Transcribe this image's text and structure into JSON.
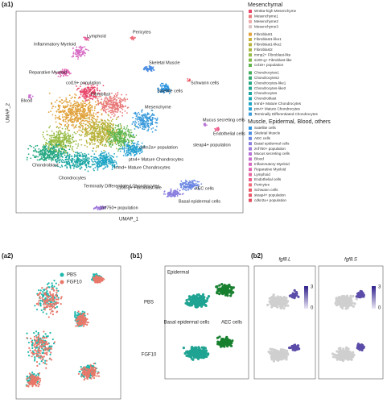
{
  "a1": {
    "panel_label": "(a1)",
    "x_label": "UMAP_1",
    "y_label": "UMAP_2",
    "cluster_labels": [
      "Lymphoid",
      "Pericytes",
      "Inflammatory Myeloid",
      "Reparative Myeloid",
      "Skeletal Muscle",
      "Schwann cells",
      "Blood",
      "Fibroblast",
      "Satellite cells",
      "col19+ population",
      "Mesenchyme",
      "Mucus secreting cells",
      "Endothelial cells",
      "steap4+ population",
      "cdkn2a+ population",
      "ptn4+ Mature Chondrocytes",
      "Inmd+ Mature Chondrocytes",
      "Chondroblast",
      "Chondrocytes",
      "Terminally Differentiated Chondrocytes",
      "s100-g+ Fibroblast-like",
      "AEC cells",
      "Basal epidermal cells",
      "znf750+ population"
    ],
    "legend": [
      {
        "title": "Mesenchymal",
        "items": [
          {
            "name": "Wnt5a-high Mesenchyme",
            "color": "#e8476a"
          },
          {
            "name": "Mesenchyme1",
            "color": "#e97a7a"
          },
          {
            "name": "Mesenchyme2",
            "color": "#eeaaaa"
          },
          {
            "name": "Mesenchyme3",
            "color": "#d9c4c4"
          },
          {
            "name": "Fibroblast1",
            "color": "#e1a23c"
          },
          {
            "name": "Fibroblast1-like1",
            "color": "#c8b43a"
          },
          {
            "name": "Fibroblast1-like2",
            "color": "#b8b23a"
          },
          {
            "name": "Fibroblast2",
            "color": "#a8b840"
          },
          {
            "name": "mmp2+ Fibroblast-like",
            "color": "#96bb44"
          },
          {
            "name": "s100-g+ Fibroblast-like",
            "color": "#7eba48"
          },
          {
            "name": "col19+ population",
            "color": "#5fb54e"
          },
          {
            "name": "Chondrocytes1",
            "color": "#3fae5a"
          },
          {
            "name": "Chondrocytes2",
            "color": "#2ea96d"
          },
          {
            "name": "Chondrocytes-like1",
            "color": "#23a780"
          },
          {
            "name": "Chondrocytes-like2",
            "color": "#1fa792"
          },
          {
            "name": "Chondrocytes",
            "color": "#1aa6a3"
          },
          {
            "name": "Chondroblast",
            "color": "#19a6b4"
          },
          {
            "name": "Inmd+ Mature Chondrocytes",
            "color": "#1ba4c4"
          },
          {
            "name": "ptn4+ Mature Chondrocytes",
            "color": "#25a0d1"
          },
          {
            "name": "Terminally Differentiated Chondrocytes",
            "color": "#3a9adb"
          }
        ]
      },
      {
        "title": "Muscle, Epidermal, Blood, others",
        "items": [
          {
            "name": "Satellite cells",
            "color": "#2a94e0"
          },
          {
            "name": "Skeletal Muscle",
            "color": "#4a8de3"
          },
          {
            "name": "AEC cells",
            "color": "#6a86e2"
          },
          {
            "name": "Basal epidermal cells",
            "color": "#8a7fdf"
          },
          {
            "name": "znf750+ population",
            "color": "#a078dc"
          },
          {
            "name": "Mucus secreting cells",
            "color": "#b672d6"
          },
          {
            "name": "Blood",
            "color": "#c86dce"
          },
          {
            "name": "Inflammatory Myeloid",
            "color": "#d668c2"
          },
          {
            "name": "Reparative Myeloid",
            "color": "#e065b2"
          },
          {
            "name": "Lymphoid",
            "color": "#e866a0"
          },
          {
            "name": "Endothelial cells",
            "color": "#ee5f8c"
          },
          {
            "name": "Pericytes",
            "color": "#f06a78"
          },
          {
            "name": "Schwann cells",
            "color": "#ee5a6a"
          },
          {
            "name": "steap4+ population",
            "color": "#ea5466"
          },
          {
            "name": "cdkn2a+ population",
            "color": "#e24e60"
          }
        ]
      }
    ]
  },
  "a2": {
    "panel_label": "(a2)",
    "legend": [
      {
        "name": "PBS",
        "color": "#1fb8ac"
      },
      {
        "name": "FGF10",
        "color": "#e8786a"
      }
    ]
  },
  "b1": {
    "panel_label": "(b1)",
    "title": "Epidermal",
    "rows": [
      "PBS",
      "FGF10"
    ],
    "labels": [
      "Basal epidermal cells",
      "AEC cells"
    ],
    "colors": [
      "#1fa392",
      "#17802f"
    ]
  },
  "b2": {
    "panel_label": "(b2)",
    "genes": [
      "fgf8.L",
      "fgf8.S"
    ],
    "scale_labels": [
      "3",
      "0"
    ]
  }
}
